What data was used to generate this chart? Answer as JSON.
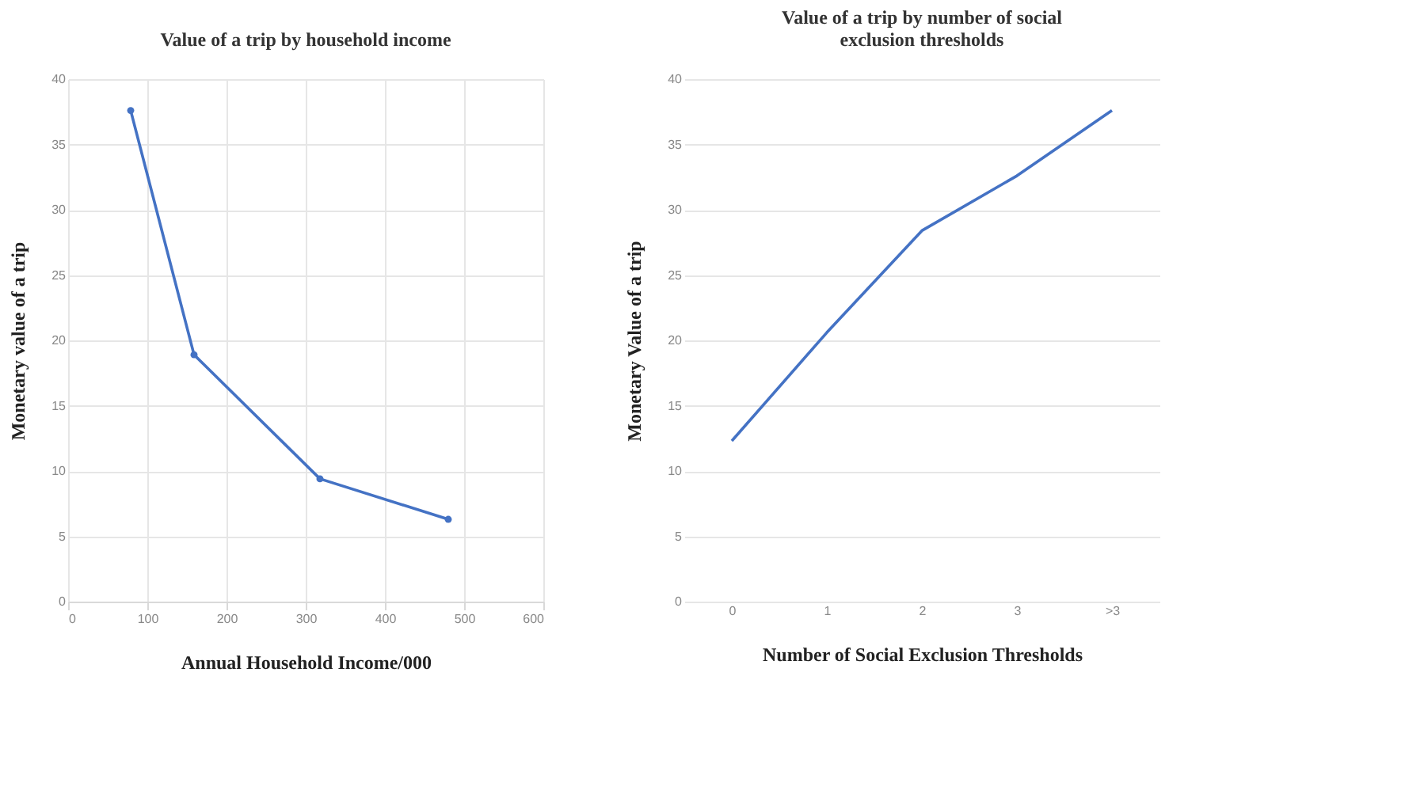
{
  "chart_data": [
    {
      "type": "line",
      "title": "Value of a trip by household income",
      "xlabel": "Annual Household Income/000",
      "ylabel": "Monetary value of a trip",
      "x": [
        79,
        159,
        318,
        480
      ],
      "series": [
        {
          "color": "#4472c4",
          "values": [
            37.6,
            18.9,
            9.4,
            6.3
          ]
        }
      ],
      "xlim": [
        0,
        600
      ],
      "xticks": [
        0,
        100,
        200,
        300,
        400,
        500,
        600
      ],
      "ylim": [
        0,
        40
      ],
      "yticks": [
        0,
        5,
        10,
        15,
        20,
        25,
        30,
        35,
        40
      ],
      "grid": true,
      "marker": "circle"
    },
    {
      "type": "line",
      "title": "Value of a trip by number of social exclusion thresholds",
      "xlabel": "Number of Social Exclusion Thresholds",
      "ylabel": "Monetary Value of a trip",
      "categories": [
        "0",
        "1",
        "2",
        "3",
        ">3"
      ],
      "series": [
        {
          "color": "#4472c4",
          "values": [
            12.3,
            20.6,
            28.4,
            32.6,
            37.6
          ]
        }
      ],
      "ylim": [
        0,
        40
      ],
      "yticks": [
        0,
        5,
        10,
        15,
        20,
        25,
        30,
        35,
        40
      ],
      "grid": "y",
      "marker": "none"
    }
  ]
}
